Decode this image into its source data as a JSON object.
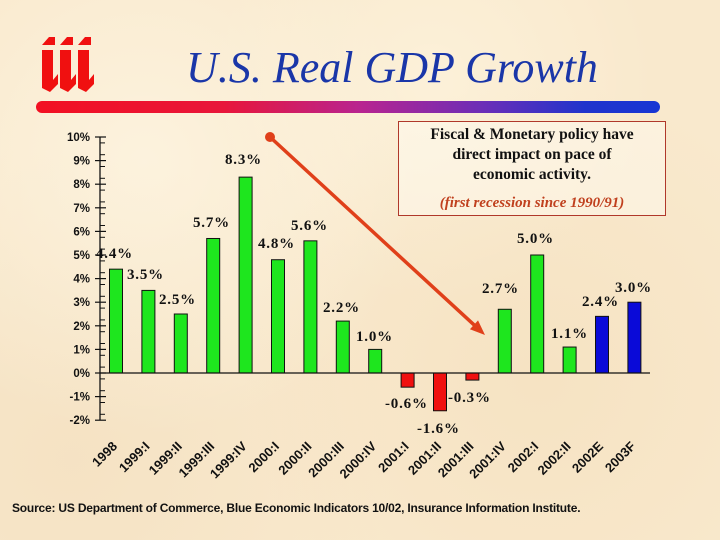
{
  "logo": {
    "icon": "iii-logo"
  },
  "title": "U.S. Real GDP Growth",
  "callout": {
    "lines": [
      "Fiscal & Monetary policy have",
      "direct impact on pace of",
      "economic activity."
    ],
    "note": "(first recession since 1990/91)"
  },
  "source": "Source: US Department of Commerce, Blue Economic Indicators 10/02, Insurance Information Institute.",
  "colors": {
    "growth": "#1ee61e",
    "decline": "#f01010",
    "forecast": "#0a0ad8",
    "title": "#1a36a8",
    "arrow": "#e0401a",
    "callout_border": "#b0382a",
    "callout_note": "#c0401e",
    "logo": "#f01010"
  },
  "chart_data": {
    "type": "bar",
    "title": "U.S. Real GDP Growth",
    "xlabel": "",
    "ylabel": "",
    "categories": [
      "1998",
      "1999:I",
      "1999:II",
      "1999:III",
      "1999:IV",
      "2000:I",
      "2000:II",
      "2000:III",
      "2000:IV",
      "2001:I",
      "2001:II",
      "2001:III",
      "2001:IV",
      "2002:I",
      "2002:II",
      "2002E",
      "2003F"
    ],
    "values": [
      4.4,
      3.5,
      2.5,
      5.7,
      8.3,
      4.8,
      5.6,
      2.2,
      1.0,
      -0.6,
      -1.6,
      -0.3,
      2.7,
      5.0,
      1.1,
      2.4,
      3.0
    ],
    "value_labels": [
      "4.4%",
      "3.5%",
      "2.5%",
      "5.7%",
      "8.3%",
      "4.8%",
      "5.6%",
      "2.2%",
      "1.0%",
      "-0.6%",
      "-1.6%",
      "-0.3%",
      "2.7%",
      "5.0%",
      "1.1%",
      "2.4%",
      "3.0%"
    ],
    "bar_types": [
      "growth",
      "growth",
      "growth",
      "growth",
      "growth",
      "growth",
      "growth",
      "growth",
      "growth",
      "decline",
      "decline",
      "decline",
      "growth",
      "growth",
      "growth",
      "forecast",
      "forecast"
    ],
    "ylim": [
      -2,
      10
    ],
    "yticks": [
      10,
      9,
      8,
      7,
      6,
      5,
      4,
      3,
      2,
      1,
      0,
      -1,
      -2
    ],
    "ytick_labels": [
      "10%",
      "9%",
      "8%",
      "7%",
      "6%",
      "5%",
      "4%",
      "3%",
      "2%",
      "1%",
      "0%",
      "-1%",
      "-2%"
    ],
    "grid": false,
    "legend": "none",
    "annotation": {
      "text": "Fiscal & Monetary policy have direct impact on pace of economic activity. (first recession since 1990/91)",
      "arrow_points_to": "2001:IV"
    }
  }
}
